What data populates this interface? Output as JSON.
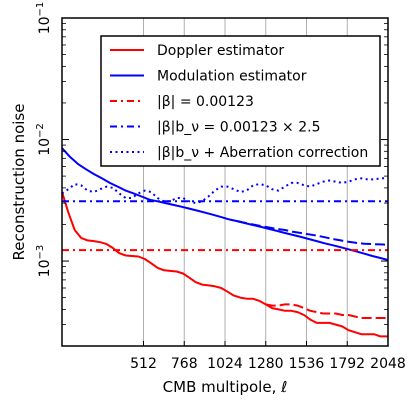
{
  "chart_data": {
    "type": "line",
    "xlabel": "CMB multipole, ℓ",
    "ylabel": "Reconstruction noise",
    "xlim": [
      0,
      2048
    ],
    "ylim": [
      0.0002,
      0.1
    ],
    "y_scale": "log",
    "grid": "vertical lines at x ticks",
    "legend_position": "top-right",
    "x_ticks": [
      512,
      768,
      1024,
      1280,
      1536,
      1792,
      2048
    ],
    "x_tick_labels": [
      "512",
      "768",
      "1024",
      "1280",
      "1536",
      "1792",
      "2048"
    ],
    "y_ticks": [
      0.001,
      0.01,
      0.1
    ],
    "y_tick_labels": [
      {
        "base": "10",
        "exp": "−3"
      },
      {
        "base": "10",
        "exp": "−2"
      },
      {
        "base": "10",
        "exp": "−1"
      }
    ],
    "series": [
      {
        "name": "Doppler estimator",
        "color": "#ff0000",
        "style": "solid",
        "x": [
          0,
          40,
          80,
          120,
          160,
          200,
          240,
          280,
          320,
          360,
          400,
          440,
          480,
          520,
          560,
          600,
          640,
          680,
          720,
          760,
          800,
          840,
          880,
          920,
          960,
          1000,
          1040,
          1080,
          1120,
          1160,
          1200,
          1240,
          1280,
          1320,
          1360,
          1400,
          1440,
          1480,
          1520,
          1560,
          1600,
          1640,
          1680,
          1720,
          1760,
          1800,
          1840,
          1880,
          1920,
          1960,
          2000,
          2048
        ],
        "y": [
          0.0037,
          0.0025,
          0.0018,
          0.00155,
          0.00148,
          0.00146,
          0.00143,
          0.00138,
          0.00128,
          0.00116,
          0.00111,
          0.0011,
          0.00109,
          0.00104,
          0.00096,
          0.00088,
          0.00084,
          0.00083,
          0.00082,
          0.00079,
          0.00073,
          0.00067,
          0.00064,
          0.00063,
          0.00062,
          0.0006,
          0.00056,
          0.00052,
          0.0005,
          0.00049,
          0.00049,
          0.00047,
          0.00044,
          0.00041,
          0.0004,
          0.00039,
          0.00039,
          0.00038,
          0.00036,
          0.00033,
          0.00031,
          0.00031,
          0.00031,
          0.0003,
          0.00029,
          0.00027,
          0.00026,
          0.00025,
          0.00025,
          0.00025,
          0.00024,
          0.00024
        ]
      },
      {
        "name": "Modulation estimator",
        "color": "#0000ff",
        "style": "solid",
        "x": [
          0,
          50,
          100,
          150,
          200,
          250,
          300,
          350,
          400,
          450,
          500,
          550,
          600,
          650,
          700,
          750,
          800,
          850,
          900,
          950,
          1000,
          1050,
          1100,
          1150,
          1200,
          1250,
          1300,
          1350,
          1400,
          1450,
          1500,
          1550,
          1600,
          1650,
          1700,
          1750,
          1800,
          1850,
          1900,
          1950,
          2000,
          2048
        ],
        "y": [
          0.0085,
          0.0072,
          0.0063,
          0.0057,
          0.0052,
          0.0048,
          0.0044,
          0.0041,
          0.0038,
          0.0036,
          0.0034,
          0.0032,
          0.0031,
          0.003,
          0.0029,
          0.0028,
          0.0027,
          0.0026,
          0.0025,
          0.0024,
          0.0023,
          0.0022,
          0.00213,
          0.00205,
          0.00198,
          0.00191,
          0.00184,
          0.00177,
          0.0017,
          0.00164,
          0.00158,
          0.00152,
          0.00146,
          0.0014,
          0.00135,
          0.0013,
          0.00125,
          0.0012,
          0.00115,
          0.0011,
          0.00106,
          0.00102
        ]
      },
      {
        "name": "|β| = 0.00123",
        "color": "#ff0000",
        "style": "dashdot",
        "x": [
          0,
          2048
        ],
        "y": [
          0.00123,
          0.00123
        ]
      },
      {
        "name": "|β|b_ν = 0.00123 × 2.5",
        "color": "#0000ff",
        "style": "dashdot",
        "x": [
          0,
          2048
        ],
        "y": [
          0.0031,
          0.0031
        ]
      },
      {
        "name": "|β|b_ν + Aberration correction",
        "color": "#0000ff",
        "style": "dotted",
        "x": [
          0,
          40,
          80,
          120,
          160,
          200,
          240,
          280,
          320,
          360,
          400,
          440,
          480,
          520,
          560,
          600,
          640,
          680,
          720,
          760,
          800,
          840,
          880,
          920,
          960,
          1000,
          1040,
          1080,
          1120,
          1160,
          1200,
          1240,
          1280,
          1320,
          1360,
          1400,
          1440,
          1480,
          1520,
          1560,
          1600,
          1640,
          1680,
          1720,
          1760,
          1800,
          1840,
          1880,
          1920,
          1960,
          2000,
          2048
        ],
        "y": [
          0.0036,
          0.0039,
          0.0043,
          0.0042,
          0.0038,
          0.0037,
          0.0039,
          0.0041,
          0.004,
          0.0036,
          0.0033,
          0.0033,
          0.0036,
          0.0038,
          0.0037,
          0.0033,
          0.0031,
          0.0031,
          0.0033,
          0.0033,
          0.0031,
          0.003,
          0.0031,
          0.0034,
          0.0038,
          0.0041,
          0.0041,
          0.0039,
          0.0037,
          0.0038,
          0.0042,
          0.0043,
          0.0042,
          0.0039,
          0.0038,
          0.0041,
          0.0044,
          0.0044,
          0.0042,
          0.0041,
          0.0043,
          0.0045,
          0.0046,
          0.0045,
          0.0044,
          0.0045,
          0.0047,
          0.0048,
          0.0047,
          0.0047,
          0.0048,
          0.0048
        ]
      },
      {
        "name": "",
        "color": "#ff0000",
        "style": "dashed",
        "x": [
          1280,
          1320,
          1360,
          1400,
          1440,
          1480,
          1520,
          1560,
          1600,
          1640,
          1680,
          1720,
          1760,
          1800,
          1840,
          1880,
          1920,
          1960,
          2000,
          2048
        ],
        "y": [
          0.00044,
          0.00043,
          0.00043,
          0.00044,
          0.00044,
          0.00043,
          0.00041,
          0.00039,
          0.00038,
          0.00037,
          0.00037,
          0.00037,
          0.00036,
          0.00036,
          0.00035,
          0.00034,
          0.00034,
          0.00034,
          0.00034,
          0.00034
        ]
      },
      {
        "name": "",
        "color": "#0000ff",
        "style": "dashed",
        "x": [
          1100,
          1150,
          1200,
          1250,
          1300,
          1350,
          1400,
          1450,
          1500,
          1550,
          1600,
          1650,
          1700,
          1750,
          1800,
          1850,
          1900,
          1950,
          2000,
          2048
        ],
        "y": [
          0.00213,
          0.00206,
          0.002,
          0.00194,
          0.00189,
          0.00184,
          0.0018,
          0.00174,
          0.0017,
          0.00166,
          0.00162,
          0.00157,
          0.00152,
          0.00148,
          0.00144,
          0.00141,
          0.00139,
          0.00138,
          0.00137,
          0.00136
        ]
      }
    ]
  },
  "legend": [
    {
      "label": "Doppler estimator",
      "color": "#ff0000",
      "style": "solid"
    },
    {
      "label": "Modulation estimator",
      "color": "#0000ff",
      "style": "solid"
    },
    {
      "label": "|β| = 0.00123",
      "color": "#ff0000",
      "style": "dashdot"
    },
    {
      "label": "|β|b_ν = 0.00123 × 2.5",
      "color": "#0000ff",
      "style": "dashdot"
    },
    {
      "label": "|β|b_ν + Aberration correction",
      "color": "#0000ff",
      "style": "dotted"
    }
  ]
}
